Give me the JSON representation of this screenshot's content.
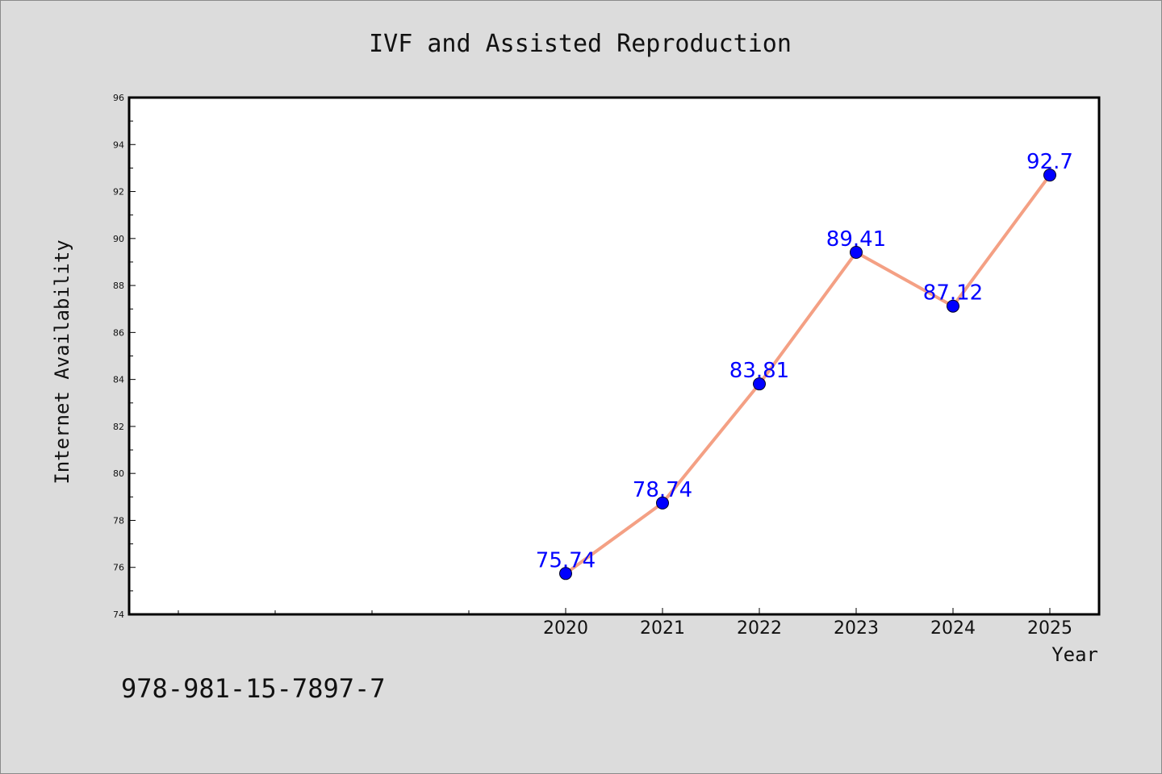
{
  "note": "978-981-15-7897-7",
  "colors": {
    "background": "#dcdcdc",
    "plot_area": "#ffffff",
    "line": "#f4a084",
    "marker": "#0000ff",
    "data_label": "#0000ff"
  },
  "chart_data": {
    "type": "line",
    "title": "IVF and Assisted Reproduction",
    "xlabel": "Year",
    "ylabel": "Internet Availability",
    "x": [
      "2020",
      "2021",
      "2022",
      "2023",
      "2024",
      "2025"
    ],
    "x_ticks_labeled": [
      "2020",
      "2021",
      "2022",
      "2023",
      "2024",
      "2025"
    ],
    "series": [
      {
        "values": [
          75.74,
          78.74,
          83.81,
          89.41,
          87.12,
          92.7
        ],
        "labels": [
          "75.74",
          "78.74",
          "83.81",
          "89.41",
          "87.12",
          "92.7"
        ]
      }
    ],
    "ylim": [
      74,
      96
    ],
    "yticks": [
      "74",
      "76",
      "78",
      "80",
      "82",
      "84",
      "86",
      "88",
      "90",
      "92",
      "94",
      "96"
    ],
    "grid": false,
    "legend": "none"
  }
}
